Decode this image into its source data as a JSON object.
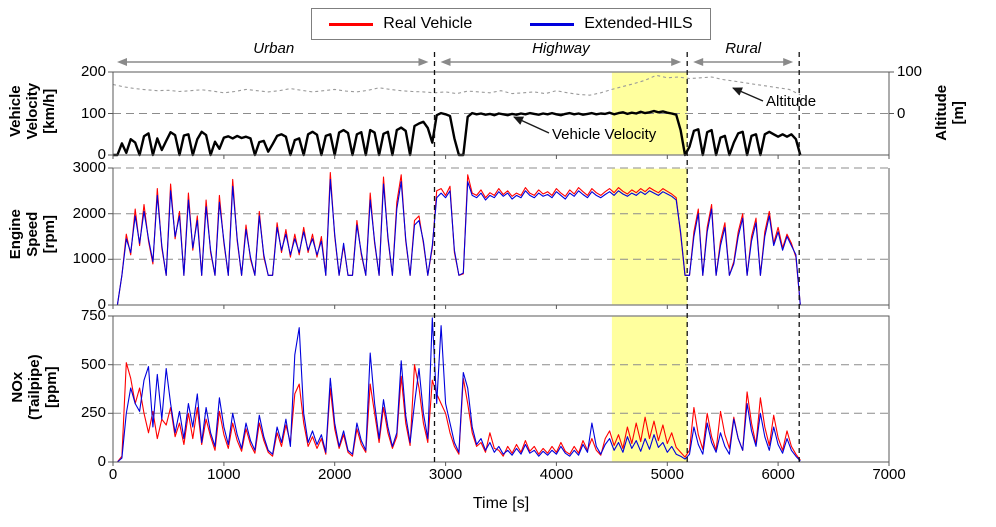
{
  "legend": {
    "items": [
      {
        "label": "Real Vehicle",
        "color": "#ff0000"
      },
      {
        "label": "Extended-HILS",
        "color": "#0000dd"
      }
    ]
  },
  "chart_data": {
    "type": "line",
    "x_axis": {
      "label": "Time [s]",
      "min": 0,
      "max": 7000,
      "ticks": [
        0,
        1000,
        2000,
        3000,
        4000,
        5000,
        6000,
        7000
      ]
    },
    "regions": [
      {
        "label": "Urban",
        "start": 0,
        "end": 2900
      },
      {
        "label": "Highway",
        "start": 2900,
        "end": 5180
      },
      {
        "label": "Rural",
        "start": 5180,
        "end": 6190
      }
    ],
    "separators": [
      2900,
      5180,
      6190
    ],
    "highlight_band": {
      "t_start": 4500,
      "t_end": 5180,
      "color": "#ffff9e"
    },
    "panels": [
      {
        "id": "velocity",
        "ylabel": "Vehicle\nVelocity\n[km/h]",
        "ylim": [
          0,
          200
        ],
        "yticks": [
          0,
          100,
          200
        ],
        "gridlines": [
          100
        ],
        "right_axis": {
          "label": "Altitude\n[m]",
          "ticks": [
            {
              "value": 100,
              "at_left_value": 200
            },
            {
              "value": 0,
              "at_left_value": 100
            }
          ]
        },
        "annotations": [
          {
            "text": "Vehicle Velocity"
          },
          {
            "text": "Altitude"
          }
        ],
        "series": [
          {
            "name": "Vehicle Velocity",
            "color": "#000000",
            "style": "solid",
            "width": 2.4,
            "t0": 0,
            "dt": 40,
            "values": [
              0,
              0,
              28,
              5,
              38,
              30,
              0,
              45,
              52,
              0,
              40,
              12,
              34,
              55,
              48,
              0,
              47,
              50,
              0,
              38,
              56,
              48,
              0,
              32,
              15,
              42,
              45,
              40,
              46,
              41,
              44,
              40,
              0,
              31,
              34,
              8,
              26,
              46,
              50,
              44,
              0,
              36,
              40,
              0,
              50,
              56,
              49,
              0,
              46,
              50,
              0,
              54,
              60,
              53,
              0,
              50,
              55,
              0,
              60,
              54,
              0,
              51,
              56,
              0,
              60,
              66,
              58,
              0,
              70,
              76,
              80,
              65,
              30,
              96,
              101,
              98,
              94,
              40,
              0,
              0,
              92,
              101,
              98,
              100,
              97,
              99,
              96,
              100,
              98,
              96,
              99,
              97,
              100,
              98,
              101,
              99,
              97,
              100,
              98,
              101,
              98,
              96,
              99,
              101,
              98,
              100,
              97,
              99,
              101,
              98,
              100,
              99,
              102,
              98,
              101,
              103,
              99,
              102,
              100,
              104,
              101,
              103,
              106,
              103,
              105,
              102,
              100,
              97,
              60,
              0,
              20,
              58,
              62,
              0,
              55,
              60,
              0,
              42,
              46,
              0,
              30,
              52,
              56,
              0,
              46,
              50,
              0,
              50,
              56,
              50,
              44,
              50,
              44,
              50,
              38,
              0
            ]
          },
          {
            "name": "Altitude",
            "color": "#9a9a9a",
            "style": "dashed",
            "width": 1.1,
            "map": "altitude-right",
            "t0": 0,
            "dt": 100,
            "values": [
              70,
              64,
              60,
              57,
              55,
              56,
              53,
              55,
              57,
              54,
              50,
              53,
              58,
              55,
              52,
              55,
              60,
              56,
              52,
              55,
              58,
              54,
              52,
              56,
              62,
              58,
              55,
              53,
              52,
              50,
              52,
              48,
              54,
              52,
              50,
              55,
              48,
              50,
              52,
              48,
              55,
              50,
              46,
              44,
              50,
              58,
              65,
              72,
              80,
              92,
              86,
              88,
              84,
              86,
              88,
              82,
              78,
              74,
              70,
              66,
              62,
              58,
              45
            ]
          }
        ]
      },
      {
        "id": "engine",
        "ylabel": "Engine\nSpeed\n[rpm]",
        "ylim": [
          0,
          3000
        ],
        "yticks": [
          0,
          1000,
          2000,
          3000
        ],
        "gridlines": [
          1000,
          2000,
          3000
        ],
        "series": [
          {
            "name": "Real Vehicle",
            "color": "#ff0000",
            "style": "solid",
            "width": 1.1,
            "t0": 0,
            "dt": 40,
            "values": [
              0,
              0,
              650,
              1550,
              1100,
              2100,
              1300,
              2200,
              1400,
              900,
              2550,
              1250,
              650,
              2650,
              1450,
              2050,
              650,
              2450,
              1200,
              1950,
              650,
              2300,
              1150,
              650,
              2400,
              1350,
              650,
              2750,
              1400,
              650,
              1750,
              1000,
              650,
              2050,
              1050,
              650,
              650,
              1800,
              1150,
              1650,
              1050,
              1550,
              1100,
              1700,
              1150,
              1550,
              1050,
              1500,
              650,
              2900,
              1500,
              650,
              1300,
              650,
              650,
              1850,
              1100,
              650,
              2450,
              1350,
              650,
              2800,
              1450,
              650,
              2250,
              2850,
              1400,
              650,
              1850,
              1950,
              1350,
              650,
              1250,
              2500,
              2550,
              2400,
              2600,
              1150,
              650,
              680,
              2850,
              2450,
              2400,
              2520,
              2350,
              2460,
              2400,
              2550,
              2420,
              2500,
              2380,
              2450,
              2400,
              2570,
              2450,
              2400,
              2520,
              2430,
              2480,
              2400,
              2550,
              2450,
              2380,
              2520,
              2430,
              2570,
              2480,
              2400,
              2550,
              2460,
              2400,
              2480,
              2550,
              2460,
              2570,
              2490,
              2430,
              2520,
              2460,
              2550,
              2480,
              2570,
              2510,
              2460,
              2550,
              2490,
              2430,
              2350,
              1550,
              650,
              650,
              1600,
              2100,
              650,
              1700,
              2200,
              650,
              1400,
              1800,
              650,
              950,
              1600,
              2000,
              650,
              1500,
              1900,
              650,
              1600,
              2050,
              1350,
              1700,
              1250,
              1550,
              1350,
              1050,
              0
            ]
          },
          {
            "name": "Extended-HILS",
            "color": "#0000dd",
            "style": "solid",
            "width": 1.1,
            "t0": 0,
            "dt": 40,
            "values": [
              0,
              0,
              650,
              1450,
              1150,
              1950,
              1350,
              2050,
              1450,
              950,
              2400,
              1300,
              650,
              2500,
              1500,
              1950,
              650,
              2300,
              1250,
              1850,
              650,
              2150,
              1200,
              650,
              2250,
              1400,
              650,
              2600,
              1450,
              650,
              1650,
              1050,
              650,
              1950,
              1100,
              650,
              650,
              1700,
              1200,
              1550,
              1100,
              1450,
              1150,
              1600,
              1200,
              1450,
              1100,
              1400,
              650,
              2750,
              1550,
              650,
              1350,
              650,
              650,
              1750,
              1150,
              650,
              2300,
              1400,
              650,
              2650,
              1500,
              650,
              2100,
              2700,
              1450,
              650,
              1750,
              1850,
              1400,
              650,
              1300,
              2350,
              2450,
              2350,
              2500,
              1200,
              650,
              700,
              2700,
              2400,
              2350,
              2450,
              2300,
              2400,
              2350,
              2480,
              2380,
              2450,
              2320,
              2400,
              2350,
              2500,
              2400,
              2350,
              2450,
              2380,
              2420,
              2350,
              2480,
              2400,
              2320,
              2450,
              2380,
              2500,
              2420,
              2350,
              2480,
              2400,
              2350,
              2420,
              2480,
              2400,
              2500,
              2430,
              2380,
              2450,
              2400,
              2480,
              2420,
              2500,
              2450,
              2400,
              2480,
              2430,
              2380,
              2300,
              1600,
              650,
              650,
              1500,
              2000,
              650,
              1600,
              2100,
              650,
              1300,
              1700,
              650,
              900,
              1500,
              1900,
              650,
              1400,
              1800,
              650,
              1500,
              1950,
              1300,
              1600,
              1200,
              1500,
              1300,
              1100,
              0
            ]
          }
        ]
      },
      {
        "id": "nox",
        "ylabel": "NOx\n(Tailpipe)\n[ppm]",
        "ylim": [
          0,
          750
        ],
        "yticks": [
          0,
          250,
          500,
          750
        ],
        "gridlines": [
          250,
          500
        ],
        "series": [
          {
            "name": "Real Vehicle",
            "color": "#ff0000",
            "style": "solid",
            "width": 1.1,
            "t0": 0,
            "dt": 40,
            "values": [
              0,
              0,
              30,
              510,
              430,
              300,
              380,
              250,
              150,
              260,
              120,
              220,
              190,
              280,
              130,
              200,
              90,
              250,
              120,
              280,
              90,
              220,
              130,
              60,
              260,
              140,
              70,
              200,
              110,
              55,
              170,
              90,
              45,
              200,
              110,
              50,
              30,
              150,
              80,
              190,
              100,
              350,
              400,
              200,
              80,
              130,
              70,
              120,
              40,
              380,
              170,
              70,
              140,
              50,
              30,
              170,
              90,
              50,
              400,
              250,
              100,
              280,
              150,
              70,
              130,
              440,
              200,
              85,
              500,
              380,
              200,
              100,
              420,
              350,
              300,
              250,
              150,
              80,
              40,
              430,
              300,
              150,
              80,
              100,
              50,
              150,
              70,
              60,
              30,
              80,
              45,
              90,
              50,
              110,
              55,
              80,
              40,
              70,
              45,
              80,
              50,
              100,
              55,
              40,
              80,
              45,
              110,
              60,
              120,
              60,
              35,
              120,
              160,
              85,
              140,
              70,
              180,
              95,
              200,
              105,
              230,
              120,
              210,
              110,
              190,
              95,
              150,
              75,
              50,
              25,
              60,
              280,
              140,
              65,
              250,
              130,
              60,
              260,
              140,
              70,
              230,
              120,
              60,
              360,
              200,
              90,
              330,
              180,
              85,
              240,
              125,
              60,
              160,
              80,
              40,
              10
            ]
          },
          {
            "name": "Extended-HILS",
            "color": "#0000dd",
            "style": "solid",
            "width": 1.1,
            "t0": 0,
            "dt": 40,
            "values": [
              0,
              0,
              20,
              250,
              380,
              300,
              260,
              420,
              490,
              180,
              450,
              220,
              480,
              300,
              150,
              260,
              120,
              300,
              180,
              350,
              100,
              280,
              150,
              80,
              330,
              180,
              90,
              250,
              140,
              70,
              200,
              110,
              60,
              240,
              130,
              60,
              40,
              180,
              100,
              220,
              80,
              550,
              690,
              250,
              100,
              160,
              90,
              140,
              50,
              430,
              200,
              80,
              160,
              60,
              40,
              200,
              110,
              60,
              560,
              300,
              120,
              320,
              180,
              80,
              150,
              520,
              240,
              100,
              300,
              480,
              250,
              120,
              740,
              300,
              700,
              300,
              200,
              100,
              50,
              460,
              380,
              180,
              90,
              120,
              60,
              100,
              50,
              80,
              40,
              60,
              35,
              70,
              40,
              90,
              45,
              60,
              30,
              55,
              35,
              60,
              40,
              80,
              45,
              30,
              60,
              35,
              90,
              50,
              200,
              80,
              40,
              90,
              120,
              60,
              100,
              50,
              130,
              70,
              110,
              55,
              120,
              65,
              140,
              75,
              100,
              50,
              80,
              40,
              30,
              15,
              40,
              180,
              90,
              40,
              200,
              100,
              50,
              150,
              80,
              40,
              220,
              120,
              60,
              300,
              160,
              80,
              250,
              130,
              60,
              180,
              90,
              45,
              120,
              60,
              30,
              5
            ]
          }
        ]
      }
    ]
  }
}
